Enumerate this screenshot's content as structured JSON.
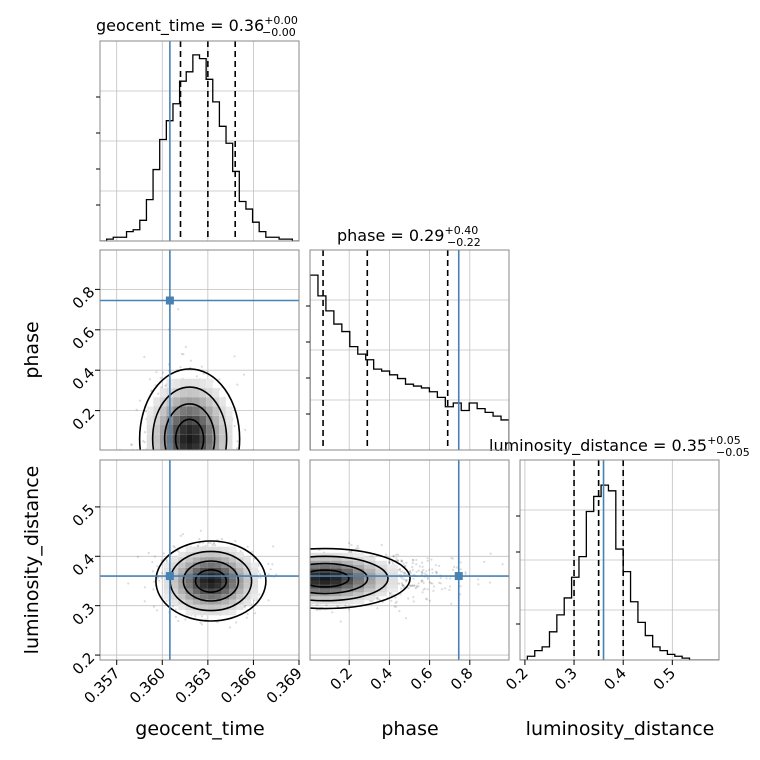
{
  "colors": {
    "truth": "#4682b4",
    "hist": "#000000",
    "grid": "#c0c0c0",
    "frame": "#888888"
  },
  "chart_data": {
    "type": "corner",
    "parameters": [
      "geocent_time",
      "phase",
      "luminosity_distance"
    ],
    "truths": {
      "geocent_time": 0.3605,
      "phase": 0.745,
      "luminosity_distance": 0.36
    },
    "ranges": {
      "geocent_time": [
        0.3559,
        0.369
      ],
      "phase": [
        0.005,
        0.995
      ],
      "luminosity_distance": [
        0.19,
        0.595
      ]
    },
    "ticks": {
      "geocent_time": [
        "0.357",
        "0.360",
        "0.363",
        "0.366",
        "0.369"
      ],
      "phase": [
        "0.2",
        "0.4",
        "0.6",
        "0.8"
      ],
      "luminosity_distance": [
        "0.2",
        "0.3",
        "0.4",
        "0.5"
      ]
    },
    "titles": [
      {
        "param": "geocent_time",
        "label": "geocent_time = 0.36",
        "upper": "+0.00",
        "lower": "−0.00"
      },
      {
        "param": "phase",
        "label": "phase = 0.29",
        "upper": "+0.40",
        "lower": "−0.22"
      },
      {
        "param": "luminosity_distance",
        "label": "luminosity_distance = 0.35",
        "upper": "+0.05",
        "lower": "−0.05"
      }
    ],
    "quantiles": {
      "geocent_time": [
        0.3612,
        0.363,
        0.3648
      ],
      "phase": [
        0.07,
        0.29,
        0.69
      ],
      "luminosity_distance": [
        0.3,
        0.35,
        0.4
      ]
    },
    "marginals": {
      "geocent_time": [
        0,
        0.01,
        0.02,
        0.02,
        0.05,
        0.06,
        0.11,
        0.22,
        0.38,
        0.54,
        0.64,
        0.73,
        0.85,
        0.9,
        0.99,
        0.97,
        0.86,
        0.74,
        0.61,
        0.52,
        0.37,
        0.21,
        0.17,
        0.1,
        0.05,
        0.02,
        0.02,
        0.01,
        0.01,
        0
      ],
      "phase": [
        0.93,
        0.82,
        0.74,
        0.67,
        0.63,
        0.55,
        0.51,
        0.48,
        0.43,
        0.42,
        0.4,
        0.38,
        0.35,
        0.34,
        0.33,
        0.31,
        0.28,
        0.23,
        0.25,
        0.21,
        0.25,
        0.22,
        0.2,
        0.18,
        0.16
      ],
      "luminosity_distance": [
        0,
        0.02,
        0.05,
        0.07,
        0.15,
        0.24,
        0.33,
        0.44,
        0.55,
        0.79,
        0.87,
        0.93,
        0.9,
        0.59,
        0.47,
        0.31,
        0.2,
        0.13,
        0.07,
        0.05,
        0.03,
        0.02,
        0.01,
        0,
        0,
        0,
        0
      ]
    },
    "peaks": {
      "geocent_time_phase": {
        "geocent_time": 0.3618,
        "phase": 0.06
      },
      "geocent_time_luminosity_distance": {
        "geocent_time": 0.3632,
        "luminosity_distance": 0.35
      },
      "phase_luminosity_distance": {
        "phase": 0.08,
        "luminosity_distance": 0.355
      }
    }
  }
}
